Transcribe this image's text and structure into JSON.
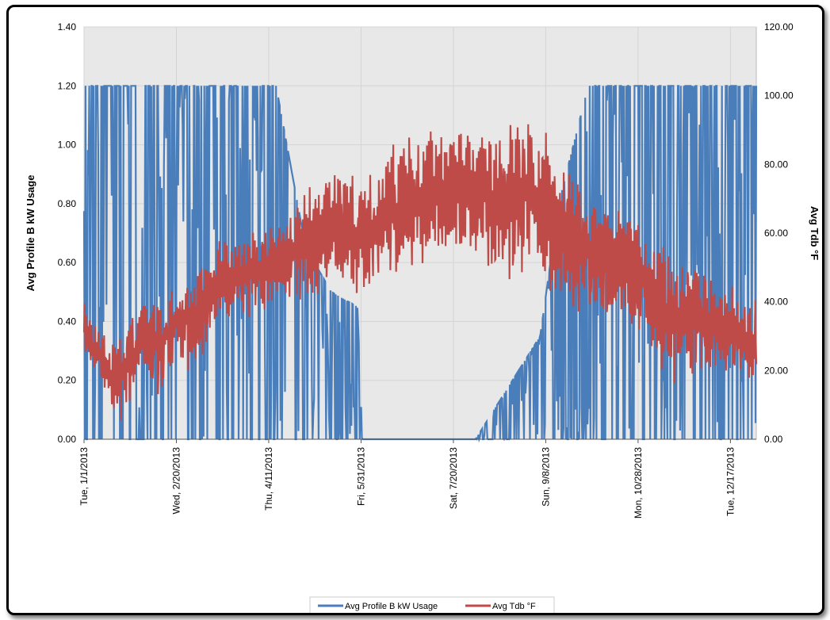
{
  "chart_data": {
    "type": "line",
    "title": "",
    "x_tick_labels": [
      "Tue, 1/1/2013",
      "Wed, 2/20/2013",
      "Thu, 4/11/2013",
      "Fri, 5/31/2013",
      "Sat, 7/20/2013",
      "Sun, 9/8/2013",
      "Mon, 10/28/2013",
      "Tue, 12/17/2013"
    ],
    "x_range": [
      "2013-01-01",
      "2013-12-31"
    ],
    "y_left": {
      "label": "Avg Profile B kW Usage",
      "range": [
        0,
        1.4
      ],
      "ticks": [
        "0.00",
        "0.20",
        "0.40",
        "0.60",
        "0.80",
        "1.00",
        "1.20",
        "1.40"
      ]
    },
    "y_right": {
      "label": "Avg Tdb °F",
      "range": [
        0,
        120
      ],
      "ticks": [
        "0.00",
        "20.00",
        "40.00",
        "60.00",
        "80.00",
        "100.00",
        "120.00"
      ]
    },
    "grid": true,
    "legend_position": "bottom",
    "series": [
      {
        "name": "Avg Profile B kW Usage",
        "axis": "left",
        "color": "#4a7ebb",
        "x": [
          "2013-01-01",
          "2013-01-15",
          "2013-02-01",
          "2013-02-15",
          "2013-03-01",
          "2013-03-15",
          "2013-04-01",
          "2013-04-15",
          "2013-05-01",
          "2013-05-15",
          "2013-05-29",
          "2013-06-01",
          "2013-07-01",
          "2013-08-01",
          "2013-09-05",
          "2013-09-15",
          "2013-10-01",
          "2013-10-15",
          "2013-11-01",
          "2013-11-15",
          "2013-12-01",
          "2013-12-15",
          "2013-12-31"
        ],
        "min": [
          0.0,
          0.0,
          0.0,
          0.0,
          0.0,
          0.0,
          0.0,
          0.0,
          0.0,
          0.0,
          0.0,
          0.0,
          0.0,
          0.0,
          0.0,
          0.0,
          0.0,
          0.0,
          0.0,
          0.0,
          0.0,
          0.0,
          0.0
        ],
        "max": [
          1.2,
          1.2,
          1.2,
          1.2,
          1.2,
          1.2,
          1.2,
          1.2,
          0.65,
          0.5,
          0.45,
          0.0,
          0.0,
          0.0,
          0.35,
          0.8,
          1.2,
          1.2,
          1.2,
          1.2,
          1.2,
          1.2,
          1.2
        ]
      },
      {
        "name": "Avg Tdb °F",
        "axis": "right",
        "color": "#be4b48",
        "x": [
          "2013-01-01",
          "2013-01-10",
          "2013-01-20",
          "2013-02-01",
          "2013-02-10",
          "2013-02-20",
          "2013-03-01",
          "2013-03-15",
          "2013-04-01",
          "2013-04-15",
          "2013-05-01",
          "2013-05-15",
          "2013-06-01",
          "2013-06-15",
          "2013-07-01",
          "2013-07-15",
          "2013-08-01",
          "2013-08-15",
          "2013-09-01",
          "2013-09-15",
          "2013-10-01",
          "2013-10-15",
          "2013-11-01",
          "2013-11-15",
          "2013-12-01",
          "2013-12-15",
          "2013-12-31"
        ],
        "min": [
          25,
          15,
          2,
          20,
          12,
          25,
          18,
          35,
          35,
          40,
          40,
          45,
          40,
          45,
          50,
          55,
          55,
          45,
          50,
          40,
          35,
          35,
          30,
          15,
          20,
          20,
          15
        ],
        "max": [
          40,
          32,
          30,
          40,
          42,
          45,
          48,
          58,
          60,
          62,
          75,
          80,
          75,
          85,
          90,
          95,
          90,
          90,
          95,
          85,
          75,
          70,
          60,
          55,
          50,
          45,
          42
        ]
      }
    ]
  }
}
